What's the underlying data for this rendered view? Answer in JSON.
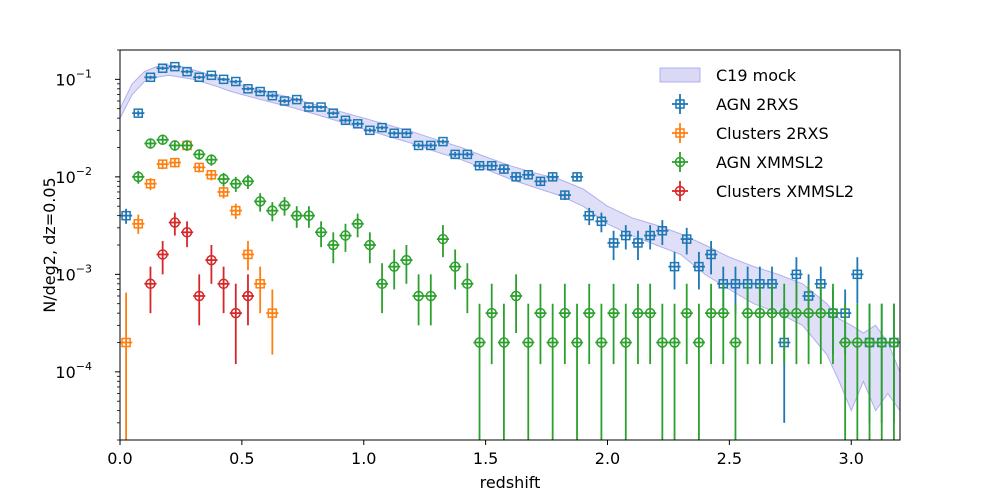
{
  "chart_data": {
    "type": "scatter",
    "title": "",
    "xlabel": "redshift",
    "ylabel": "N/deg2, dz=0.05",
    "xlim": [
      0.0,
      3.2
    ],
    "ylim": [
      2e-05,
      0.2
    ],
    "yscale": "log",
    "legend_position": "top-right",
    "x_ticks": [
      {
        "value": 0.0,
        "label": "0.0"
      },
      {
        "value": 0.5,
        "label": "0.5"
      },
      {
        "value": 1.0,
        "label": "1.0"
      },
      {
        "value": 1.5,
        "label": "1.5"
      },
      {
        "value": 2.0,
        "label": "2.0"
      },
      {
        "value": 2.5,
        "label": "2.5"
      },
      {
        "value": 3.0,
        "label": "3.0"
      }
    ],
    "y_ticks": [
      {
        "value": 0.1,
        "base": "10",
        "exp": "−1"
      },
      {
        "value": 0.01,
        "base": "10",
        "exp": "−2"
      },
      {
        "value": 0.001,
        "base": "10",
        "exp": "−3"
      },
      {
        "value": 0.0001,
        "base": "10",
        "exp": "−4"
      }
    ],
    "band": {
      "name": "C19 mock",
      "color": "#c9c9f2",
      "x": [
        0.0,
        0.05,
        0.1,
        0.15,
        0.2,
        0.25,
        0.3,
        0.35,
        0.4,
        0.45,
        0.5,
        0.6,
        0.7,
        0.8,
        0.9,
        1.0,
        1.1,
        1.2,
        1.3,
        1.4,
        1.5,
        1.6,
        1.7,
        1.8,
        1.9,
        2.0,
        2.1,
        2.2,
        2.3,
        2.4,
        2.5,
        2.6,
        2.7,
        2.8,
        2.9,
        2.95,
        3.0,
        3.05,
        3.1,
        3.15,
        3.2
      ],
      "upper": [
        0.05,
        0.09,
        0.12,
        0.135,
        0.14,
        0.135,
        0.125,
        0.115,
        0.105,
        0.095,
        0.087,
        0.075,
        0.065,
        0.055,
        0.047,
        0.04,
        0.034,
        0.029,
        0.024,
        0.02,
        0.016,
        0.013,
        0.011,
        0.0095,
        0.0075,
        0.005,
        0.0038,
        0.0032,
        0.0026,
        0.002,
        0.0015,
        0.0012,
        0.001,
        0.0008,
        0.0005,
        0.00035,
        0.0003,
        0.00025,
        0.0003,
        0.0002,
        0.0001
      ],
      "lower": [
        0.04,
        0.07,
        0.095,
        0.105,
        0.11,
        0.105,
        0.1,
        0.092,
        0.084,
        0.076,
        0.07,
        0.06,
        0.052,
        0.044,
        0.037,
        0.031,
        0.026,
        0.022,
        0.018,
        0.015,
        0.012,
        0.0095,
        0.0078,
        0.0065,
        0.005,
        0.0033,
        0.0025,
        0.002,
        0.0016,
        0.001,
        0.0007,
        0.0005,
        0.0004,
        0.0003,
        0.00015,
        8e-05,
        4e-05,
        8e-05,
        4e-05,
        6e-05,
        4e-05
      ]
    },
    "series": [
      {
        "name": "AGN 2RXS",
        "color": "#1f77b4",
        "marker": "square",
        "x": [
          0.025,
          0.075,
          0.125,
          0.175,
          0.225,
          0.275,
          0.325,
          0.375,
          0.425,
          0.475,
          0.525,
          0.575,
          0.625,
          0.675,
          0.725,
          0.775,
          0.825,
          0.875,
          0.925,
          0.975,
          1.025,
          1.075,
          1.125,
          1.175,
          1.225,
          1.275,
          1.325,
          1.375,
          1.425,
          1.475,
          1.525,
          1.575,
          1.625,
          1.675,
          1.725,
          1.775,
          1.825,
          1.875,
          1.925,
          1.975,
          2.025,
          2.075,
          2.125,
          2.175,
          2.225,
          2.275,
          2.325,
          2.375,
          2.425,
          2.475,
          2.525,
          2.575,
          2.625,
          2.675,
          2.725,
          2.775,
          2.825,
          2.875,
          2.925,
          2.975,
          3.025,
          3.075,
          3.125,
          3.175
        ],
        "y": [
          0.004,
          0.045,
          0.105,
          0.13,
          0.135,
          0.12,
          0.105,
          0.11,
          0.1,
          0.095,
          0.08,
          0.075,
          0.068,
          0.06,
          0.062,
          0.052,
          0.052,
          0.045,
          0.038,
          0.035,
          0.03,
          0.032,
          0.028,
          0.028,
          0.021,
          0.021,
          0.023,
          0.017,
          0.017,
          0.013,
          0.013,
          0.012,
          0.01,
          0.0105,
          0.009,
          0.01,
          0.0065,
          0.01,
          0.004,
          0.0035,
          0.0021,
          0.0025,
          0.0021,
          0.0025,
          0.0028,
          0.0012,
          0.0023,
          0.0012,
          0.0016,
          0.0008,
          0.0008,
          0.0008,
          0.0008,
          0.0008,
          0.0002,
          0.001,
          0.0006,
          0.0008,
          0.0004,
          0.0004,
          0.001,
          0.0002,
          0.0002,
          0.0002
        ],
        "yerr_lo": [
          0.0007,
          0.003,
          0.004,
          0.005,
          0.005,
          0.005,
          0.004,
          0.004,
          0.004,
          0.004,
          0.003,
          0.003,
          0.003,
          0.003,
          0.003,
          0.002,
          0.002,
          0.002,
          0.002,
          0.002,
          0.0015,
          0.0015,
          0.0015,
          0.0015,
          0.0012,
          0.0012,
          0.0012,
          0.001,
          0.001,
          0.0009,
          0.0009,
          0.0009,
          0.0008,
          0.0008,
          0.0008,
          0.0008,
          0.0007,
          0.0008,
          0.0008,
          0.0008,
          0.0007,
          0.0007,
          0.0007,
          0.0007,
          0.0008,
          0.0005,
          0.0007,
          0.0005,
          0.0006,
          0.0004,
          0.0004,
          0.0004,
          0.0004,
          0.0004,
          0.00017,
          0.0005,
          0.0003,
          0.0004,
          0.00025,
          0.00025,
          0.0005,
          0.00017,
          0.00017,
          0.00017
        ],
        "yerr_hi": [
          0.0007,
          0.003,
          0.004,
          0.005,
          0.005,
          0.005,
          0.004,
          0.004,
          0.004,
          0.004,
          0.003,
          0.003,
          0.003,
          0.003,
          0.003,
          0.002,
          0.002,
          0.002,
          0.002,
          0.002,
          0.0015,
          0.0015,
          0.0015,
          0.0015,
          0.0012,
          0.0012,
          0.0012,
          0.001,
          0.001,
          0.0009,
          0.0009,
          0.0009,
          0.0008,
          0.0008,
          0.0008,
          0.0008,
          0.0007,
          0.0008,
          0.0008,
          0.0008,
          0.0007,
          0.0007,
          0.0007,
          0.0007,
          0.0008,
          0.0005,
          0.0007,
          0.0005,
          0.0006,
          0.0004,
          0.0004,
          0.0004,
          0.0004,
          0.0004,
          0.0003,
          0.0005,
          0.0004,
          0.0004,
          0.0003,
          0.0003,
          0.0005,
          0.0003,
          0.0003,
          0.0003
        ]
      },
      {
        "name": "Clusters 2RXS",
        "color": "#ff7f0e",
        "marker": "square",
        "x": [
          0.025,
          0.075,
          0.125,
          0.175,
          0.225,
          0.275,
          0.325,
          0.375,
          0.425,
          0.475,
          0.525,
          0.575,
          0.625
        ],
        "y": [
          0.0002,
          0.0033,
          0.0085,
          0.0135,
          0.014,
          0.021,
          0.0125,
          0.0105,
          0.007,
          0.0045,
          0.0016,
          0.0008,
          0.0004
        ],
        "yerr_lo": [
          0.00018,
          0.0007,
          0.0012,
          0.0015,
          0.0015,
          0.002,
          0.0014,
          0.0013,
          0.001,
          0.0008,
          0.0005,
          0.0004,
          0.00025
        ],
        "yerr_hi": [
          0.00045,
          0.0008,
          0.0012,
          0.0015,
          0.0015,
          0.002,
          0.0014,
          0.0013,
          0.001,
          0.0008,
          0.0006,
          0.0004,
          0.0003
        ]
      },
      {
        "name": "AGN XMMSL2",
        "color": "#2ca02c",
        "marker": "circle",
        "x": [
          0.075,
          0.125,
          0.175,
          0.225,
          0.275,
          0.325,
          0.375,
          0.425,
          0.475,
          0.525,
          0.575,
          0.625,
          0.675,
          0.725,
          0.775,
          0.825,
          0.875,
          0.925,
          0.975,
          1.025,
          1.075,
          1.125,
          1.175,
          1.225,
          1.275,
          1.325,
          1.375,
          1.425,
          1.475,
          1.525,
          1.575,
          1.625,
          1.675,
          1.725,
          1.775,
          1.825,
          1.875,
          1.925,
          1.975,
          2.025,
          2.075,
          2.125,
          2.175,
          2.225,
          2.275,
          2.325,
          2.375,
          2.425,
          2.475,
          2.525,
          2.575,
          2.625,
          2.675,
          2.725,
          2.775,
          2.825,
          2.875,
          2.925,
          2.975,
          3.025,
          3.075,
          3.125,
          3.175
        ],
        "y": [
          0.01,
          0.022,
          0.024,
          0.021,
          0.021,
          0.017,
          0.015,
          0.0095,
          0.0085,
          0.009,
          0.0056,
          0.0045,
          0.0051,
          0.004,
          0.004,
          0.0027,
          0.002,
          0.0025,
          0.0033,
          0.002,
          0.0008,
          0.0012,
          0.0014,
          0.0006,
          0.0006,
          0.0023,
          0.0012,
          0.0008,
          0.0002,
          0.0004,
          0.0002,
          0.0006,
          0.0002,
          0.0004,
          0.0002,
          0.0004,
          0.0002,
          0.0004,
          0.0002,
          0.0004,
          0.0002,
          0.0004,
          0.0004,
          0.0002,
          0.0002,
          0.0004,
          0.0002,
          0.0004,
          0.0004,
          0.0002,
          0.0004,
          0.0004,
          0.0004,
          0.0004,
          0.0004,
          0.0004,
          0.0004,
          0.0004,
          0.0002,
          0.0002,
          0.0002,
          0.0002,
          0.0002
        ],
        "yerr_lo": [
          0.0015,
          0.0025,
          0.0025,
          0.0025,
          0.0025,
          0.002,
          0.002,
          0.0015,
          0.0015,
          0.0015,
          0.0012,
          0.001,
          0.0011,
          0.001,
          0.001,
          0.0008,
          0.0007,
          0.0008,
          0.0009,
          0.0007,
          0.0004,
          0.0005,
          0.0006,
          0.0003,
          0.0003,
          0.0008,
          0.0005,
          0.0004,
          0.00018,
          0.00028,
          0.00018,
          0.00035,
          0.00018,
          0.00028,
          0.00018,
          0.00028,
          0.00018,
          0.00028,
          0.00018,
          0.00028,
          0.00018,
          0.00028,
          0.00028,
          0.00018,
          0.00018,
          0.00028,
          0.00018,
          0.00028,
          0.00028,
          0.00018,
          0.00028,
          0.00028,
          0.00028,
          0.00028,
          0.00028,
          0.00028,
          0.00028,
          0.00028,
          0.00018,
          0.00018,
          0.00018,
          0.00018,
          0.00018
        ],
        "yerr_hi": [
          0.0015,
          0.0025,
          0.0025,
          0.0025,
          0.0025,
          0.002,
          0.002,
          0.0015,
          0.0015,
          0.0015,
          0.0012,
          0.001,
          0.0011,
          0.001,
          0.001,
          0.0008,
          0.0007,
          0.0008,
          0.0009,
          0.0007,
          0.0005,
          0.0006,
          0.0006,
          0.0004,
          0.0004,
          0.0009,
          0.0006,
          0.0005,
          0.0003,
          0.0004,
          0.0003,
          0.0004,
          0.0003,
          0.0004,
          0.0003,
          0.0004,
          0.0003,
          0.0004,
          0.0003,
          0.0004,
          0.0003,
          0.0004,
          0.0004,
          0.0003,
          0.0003,
          0.0004,
          0.0003,
          0.0004,
          0.0004,
          0.0003,
          0.0004,
          0.0004,
          0.0004,
          0.0004,
          0.0004,
          0.0004,
          0.0004,
          0.0004,
          0.0003,
          0.0003,
          0.0003,
          0.0003,
          0.0003
        ]
      },
      {
        "name": "Clusters XMMSL2",
        "color": "#d62728",
        "marker": "circle",
        "x": [
          0.125,
          0.175,
          0.225,
          0.275,
          0.325,
          0.375,
          0.425,
          0.475,
          0.525
        ],
        "y": [
          0.0008,
          0.0016,
          0.0034,
          0.0027,
          0.0006,
          0.0014,
          0.0008,
          0.0004,
          0.0006
        ],
        "yerr_lo": [
          0.0004,
          0.0006,
          0.0009,
          0.0008,
          0.0003,
          0.0006,
          0.0004,
          0.00028,
          0.0003
        ],
        "yerr_hi": [
          0.0004,
          0.0006,
          0.0009,
          0.0008,
          0.0004,
          0.0006,
          0.0004,
          0.0004,
          0.0004
        ]
      }
    ]
  }
}
